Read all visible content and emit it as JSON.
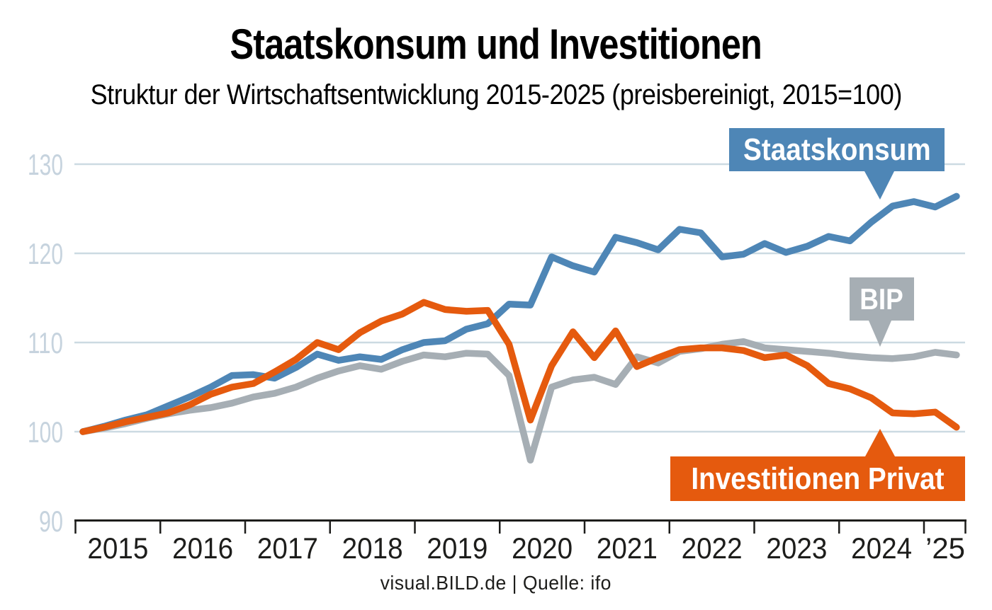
{
  "header": {
    "title": "Staatskonsum und Investitionen",
    "subtitle": "Struktur der Wirtschaftsentwicklung 2015-2025 (preisbereinigt, 2015=100)"
  },
  "footer": {
    "credit": "visual.BILD.de | Quelle: ifo"
  },
  "chart_data": {
    "type": "line",
    "title": "Staatskonsum und Investitionen",
    "subtitle": "Struktur der Wirtschaftsentwicklung 2015-2025 (preisbereinigt, 2015=100)",
    "frequency": "quarterly",
    "x_start": "2015-Q1",
    "x_end": "2025-Q2",
    "x_year_labels": [
      "2015",
      "2016",
      "2017",
      "2018",
      "2019",
      "2020",
      "2021",
      "2022",
      "2023",
      "2024",
      "’25"
    ],
    "y_ticks": [
      130,
      120,
      110,
      100,
      90
    ],
    "ylim": [
      90,
      132
    ],
    "grid": "horizontal-only",
    "legend_style": "callout-boxes-on-lines",
    "colors": {
      "grid": "#ccdae2",
      "axis": "#1d1d1b",
      "y_tick_label": "#c6d3de",
      "x_tick_label": "#1d1d1b"
    },
    "series": [
      {
        "name": "BIP",
        "color": "#a6aeb4",
        "values": [
          100.0,
          100.4,
          100.9,
          101.5,
          102.0,
          102.4,
          102.7,
          103.2,
          103.9,
          104.3,
          105.0,
          106.0,
          106.8,
          107.4,
          107.0,
          107.9,
          108.6,
          108.4,
          108.8,
          108.7,
          106.3,
          96.8,
          105.0,
          105.8,
          106.1,
          105.3,
          108.4,
          107.7,
          109.0,
          109.3,
          109.8,
          110.1,
          109.4,
          109.2,
          109.0,
          108.8,
          108.5,
          108.3,
          108.2,
          108.4,
          108.9,
          108.6
        ]
      },
      {
        "name": "Staatskonsum",
        "color": "#4e86b6",
        "values": [
          100.0,
          100.6,
          101.3,
          101.9,
          102.9,
          103.9,
          105.0,
          106.3,
          106.4,
          106.0,
          107.2,
          108.7,
          108.0,
          108.4,
          108.1,
          109.2,
          110.0,
          110.2,
          111.5,
          112.1,
          114.3,
          114.2,
          119.6,
          118.6,
          117.9,
          121.8,
          121.2,
          120.4,
          122.7,
          122.3,
          119.6,
          119.9,
          121.1,
          120.1,
          120.8,
          121.9,
          121.4,
          123.5,
          125.3,
          125.8,
          125.2,
          126.4
        ]
      },
      {
        "name": "Investitionen Privat",
        "color": "#e55a0e",
        "values": [
          100.0,
          100.5,
          101.1,
          101.6,
          102.1,
          103.0,
          104.2,
          105.0,
          105.4,
          106.7,
          108.1,
          110.0,
          109.2,
          111.1,
          112.4,
          113.2,
          114.5,
          113.7,
          113.5,
          113.6,
          109.8,
          101.3,
          107.4,
          111.2,
          108.3,
          111.3,
          107.3,
          108.3,
          109.2,
          109.4,
          109.4,
          109.1,
          108.3,
          108.6,
          107.4,
          105.4,
          104.8,
          103.8,
          102.1,
          102.0,
          102.2,
          100.5
        ]
      }
    ]
  }
}
